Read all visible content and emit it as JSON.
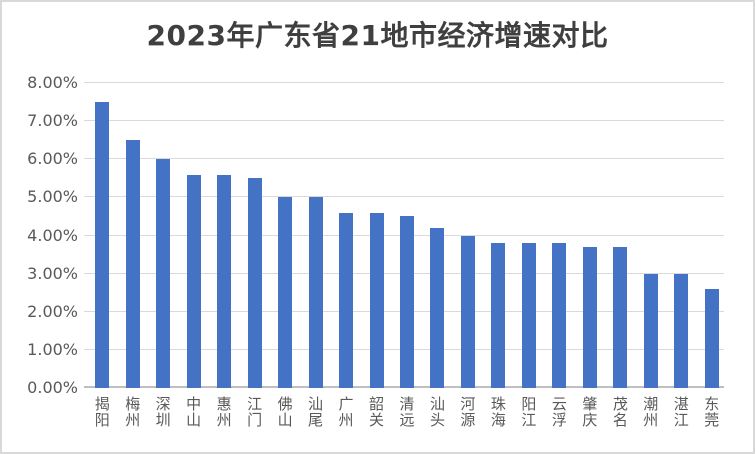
{
  "chart_data": {
    "type": "bar",
    "title": "2023年广东省21地市经济增速对比",
    "categories": [
      "揭阳",
      "梅州",
      "深圳",
      "中山",
      "惠州",
      "江门",
      "佛山",
      "汕尾",
      "广州",
      "韶关",
      "清远",
      "汕头",
      "河源",
      "珠海",
      "阳江",
      "云浮",
      "肇庆",
      "茂名",
      "潮州",
      "湛江",
      "东莞"
    ],
    "values": [
      7.5,
      6.5,
      6.0,
      5.6,
      5.6,
      5.5,
      5.0,
      5.0,
      4.6,
      4.6,
      4.5,
      4.2,
      4.0,
      3.8,
      3.8,
      3.8,
      3.7,
      3.7,
      3.0,
      3.0,
      2.6
    ],
    "value_unit": "%",
    "xlabel": "",
    "ylabel": "",
    "ylim": [
      0,
      8
    ],
    "y_tick_values": [
      0,
      1,
      2,
      3,
      4,
      5,
      6,
      7,
      8
    ],
    "y_tick_labels": [
      "0.00%",
      "1.00%",
      "2.00%",
      "3.00%",
      "4.00%",
      "5.00%",
      "6.00%",
      "7.00%",
      "8.00%"
    ],
    "grid": true,
    "legend_position": "none"
  },
  "colors": {
    "bar": "#4472C4",
    "gridline": "#D9D9D9",
    "axis_line": "#BFBFBF",
    "title_text": "#3F3F3F",
    "axis_text": "#595959",
    "border": "#D9D9D9",
    "background": "#FFFFFF"
  }
}
